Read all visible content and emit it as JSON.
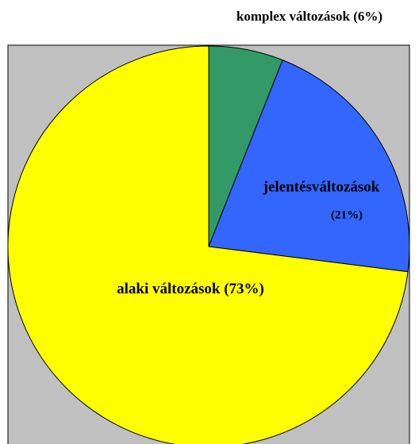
{
  "chart_data": {
    "type": "pie",
    "categories": [
      "komplex változások",
      "jelentésváltozások",
      "alaki változások"
    ],
    "values": [
      6,
      21,
      73
    ],
    "value_labels": [
      "(6%)",
      "(21%)",
      "(73%)"
    ],
    "colors": [
      "#339966",
      "#3366ff",
      "#ffff00"
    ]
  }
}
